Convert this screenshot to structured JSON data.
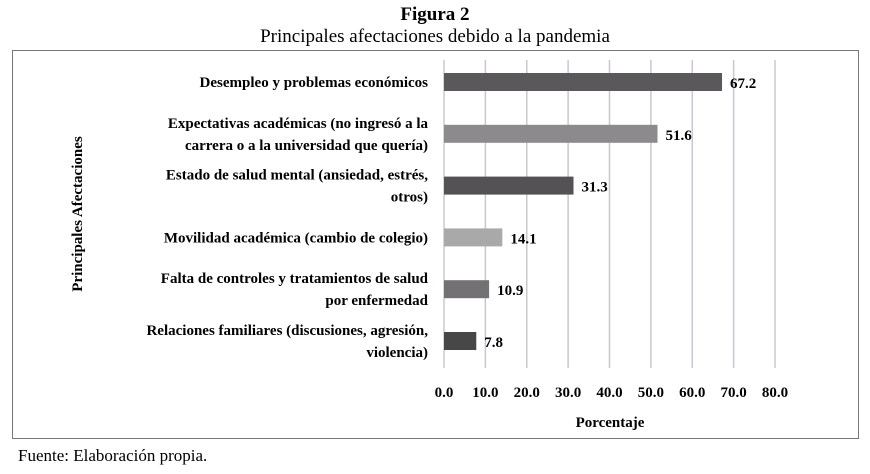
{
  "figure_label": "Figura 2",
  "source": "Fuente: Elaboración propia.",
  "chart_data": {
    "type": "bar",
    "orientation": "horizontal",
    "title": "Principales afectaciones debido a la pandemia",
    "xlabel": "Porcentaje",
    "ylabel": "Principales Afectaciones",
    "xlim": [
      0,
      80
    ],
    "xticks": [
      "0.0",
      "10.0",
      "20.0",
      "30.0",
      "40.0",
      "50.0",
      "60.0",
      "70.0",
      "80.0"
    ],
    "grid": true,
    "categories": [
      [
        "Desempleo y problemas económicos"
      ],
      [
        "Expectativas académicas (no ingresó a la",
        "carrera o a la universidad que quería)"
      ],
      [
        "Estado de salud mental (ansiedad, estrés,",
        "otros)"
      ],
      [
        "Movilidad académica (cambio de colegio)"
      ],
      [
        "Falta de controles y tratamientos de salud",
        "por enfermedad"
      ],
      [
        "Relaciones familiares (discusiones, agresión,",
        "violencia)"
      ]
    ],
    "values": [
      67.2,
      51.6,
      31.3,
      14.1,
      10.9,
      7.8
    ],
    "value_labels": [
      "67.2",
      "51.6",
      "31.3",
      "14.1",
      "10.9",
      "7.8"
    ],
    "colors": [
      "#5b585b",
      "#8c8a8c",
      "#555255",
      "#a9a9a9",
      "#737173",
      "#474747"
    ]
  }
}
